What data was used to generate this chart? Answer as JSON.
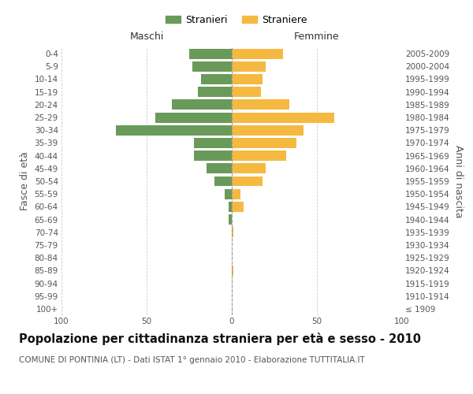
{
  "age_groups": [
    "100+",
    "95-99",
    "90-94",
    "85-89",
    "80-84",
    "75-79",
    "70-74",
    "65-69",
    "60-64",
    "55-59",
    "50-54",
    "45-49",
    "40-44",
    "35-39",
    "30-34",
    "25-29",
    "20-24",
    "15-19",
    "10-14",
    "5-9",
    "0-4"
  ],
  "birth_years": [
    "≤ 1909",
    "1910-1914",
    "1915-1919",
    "1920-1924",
    "1925-1929",
    "1930-1934",
    "1935-1939",
    "1940-1944",
    "1945-1949",
    "1950-1954",
    "1955-1959",
    "1960-1964",
    "1965-1969",
    "1970-1974",
    "1975-1979",
    "1980-1984",
    "1985-1989",
    "1990-1994",
    "1995-1999",
    "2000-2004",
    "2005-2009"
  ],
  "maschi": [
    0,
    0,
    0,
    0,
    0,
    0,
    0,
    2,
    2,
    4,
    10,
    15,
    22,
    22,
    68,
    45,
    35,
    20,
    18,
    23,
    25
  ],
  "femmine": [
    0,
    0,
    0,
    1,
    0,
    0,
    1,
    0,
    7,
    5,
    18,
    20,
    32,
    38,
    42,
    60,
    34,
    17,
    18,
    20,
    30
  ],
  "maschi_color": "#6a9a5a",
  "femmine_color": "#f5b942",
  "title": "Popolazione per cittadinanza straniera per età e sesso - 2010",
  "subtitle": "COMUNE DI PONTINIA (LT) - Dati ISTAT 1° gennaio 2010 - Elaborazione TUTTITALIA.IT",
  "ylabel_left": "Fasce di età",
  "ylabel_right": "Anni di nascita",
  "xlabel_left": "Maschi",
  "xlabel_right": "Femmine",
  "legend_stranieri": "Stranieri",
  "legend_straniere": "Straniere",
  "xlim": 100,
  "background_color": "#ffffff",
  "grid_color": "#cccccc",
  "bar_height": 0.8,
  "title_fontsize": 10.5,
  "subtitle_fontsize": 7.5,
  "tick_fontsize": 7.5,
  "label_fontsize": 9,
  "legend_fontsize": 9
}
